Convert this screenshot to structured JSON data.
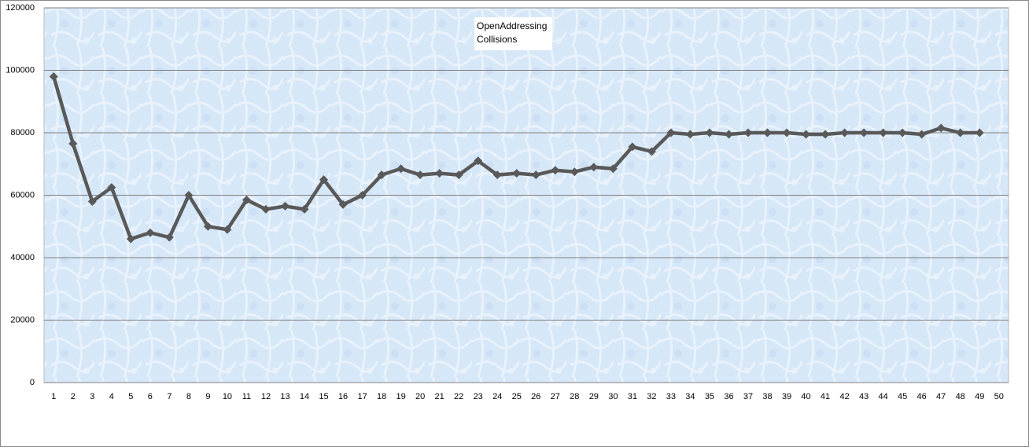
{
  "chart_data": {
    "type": "line",
    "title": "OpenAddressing Collisions",
    "categories": [
      "1",
      "2",
      "3",
      "4",
      "5",
      "6",
      "7",
      "8",
      "9",
      "10",
      "11",
      "12",
      "13",
      "14",
      "15",
      "16",
      "17",
      "18",
      "19",
      "20",
      "21",
      "22",
      "23",
      "24",
      "25",
      "26",
      "27",
      "28",
      "29",
      "30",
      "31",
      "32",
      "33",
      "34",
      "35",
      "36",
      "37",
      "38",
      "39",
      "40",
      "41",
      "42",
      "43",
      "44",
      "45",
      "46",
      "47",
      "48",
      "49",
      "50"
    ],
    "series": [
      {
        "name": "Collisions",
        "color": "#595959",
        "values": [
          98000,
          76500,
          58000,
          62500,
          46000,
          48000,
          46500,
          60000,
          50000,
          49000,
          58500,
          55500,
          56500,
          55500,
          65000,
          57000,
          60000,
          66500,
          68500,
          66500,
          67000,
          66500,
          71000,
          66500,
          67000,
          66500,
          68000,
          67500,
          69000,
          68500,
          75500,
          74000,
          80000,
          79500,
          80000,
          79500,
          80000,
          80000,
          80000,
          79500,
          79500,
          80000,
          80000,
          80000,
          80000,
          79500,
          81500,
          80000,
          80000,
          null
        ]
      }
    ],
    "ylim": [
      0,
      120000
    ],
    "yticks": [
      0,
      20000,
      40000,
      60000,
      80000,
      100000,
      120000
    ],
    "grid": true
  }
}
